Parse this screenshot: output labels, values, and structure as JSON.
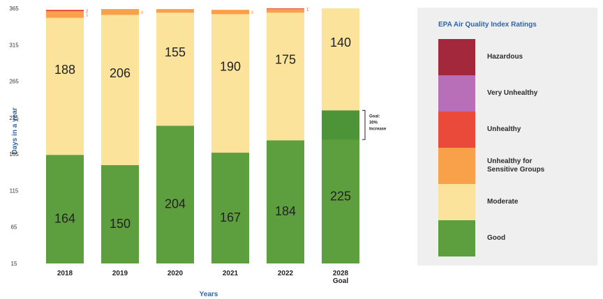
{
  "chart_data": {
    "type": "bar",
    "stacked": true,
    "xlabel": "Years",
    "ylabel": "Days in a year",
    "ylim": [
      15,
      365
    ],
    "yticks": [
      15,
      65,
      115,
      165,
      215,
      265,
      315,
      365
    ],
    "categories": [
      "2018",
      "2019",
      "2020",
      "2021",
      "2022",
      "2028 Goal"
    ],
    "category_lines": [
      [
        "2018"
      ],
      [
        "2019"
      ],
      [
        "2020"
      ],
      [
        "2021"
      ],
      [
        "2022"
      ],
      [
        "2028",
        "Goal"
      ]
    ],
    "series": [
      {
        "name": "Good",
        "color": "#5d9e3f",
        "values": [
          164,
          150,
          204,
          167,
          184,
          225
        ],
        "labels": [
          "164",
          "150",
          "204",
          "167",
          "184",
          "225"
        ]
      },
      {
        "name": "Moderate",
        "color": "#fbe39b",
        "values": [
          188,
          206,
          155,
          190,
          175,
          140
        ],
        "labels": [
          "188",
          "206",
          "155",
          "190",
          "175",
          "140"
        ]
      },
      {
        "name": "Unhealthy for Sensitive Groups",
        "color": "#f9a04a",
        "values": [
          9,
          8,
          5,
          6,
          5,
          0
        ],
        "labels": [
          "9",
          "8",
          "",
          "6",
          "",
          ""
        ]
      },
      {
        "name": "Unhealthy",
        "color": "#ea4a3a",
        "values": [
          2,
          0,
          0,
          0,
          1,
          0
        ],
        "labels": [
          "2",
          "",
          "",
          "",
          "1",
          ""
        ]
      },
      {
        "name": "Very Unhealthy",
        "color": "#b86fb7",
        "values": [
          0,
          0,
          0,
          0,
          0,
          0
        ],
        "labels": [
          "",
          "",
          "",
          "",
          "",
          ""
        ]
      },
      {
        "name": "Hazardous",
        "color": "#a3283c",
        "values": [
          0,
          0,
          0,
          0,
          0,
          0
        ],
        "labels": [
          "",
          "",
          "",
          "",
          "",
          ""
        ]
      }
    ],
    "goal_band": {
      "category_index": 5,
      "from": 185,
      "to": 225
    },
    "annotation": [
      "Goal:",
      "30%",
      "Increase"
    ]
  },
  "legend": {
    "title": "EPA Air Quality Index Ratings",
    "items": [
      {
        "label": "Hazardous",
        "color": "#a3283c"
      },
      {
        "label": "Very Unhealthy",
        "color": "#b86fb7"
      },
      {
        "label": "Unhealthy",
        "color": "#ea4a3a"
      },
      {
        "label": "Unhealthy for Sensitive Groups",
        "color": "#f9a04a"
      },
      {
        "label": "Moderate",
        "color": "#fbe39b"
      },
      {
        "label": "Good",
        "color": "#5d9e3f"
      }
    ]
  }
}
